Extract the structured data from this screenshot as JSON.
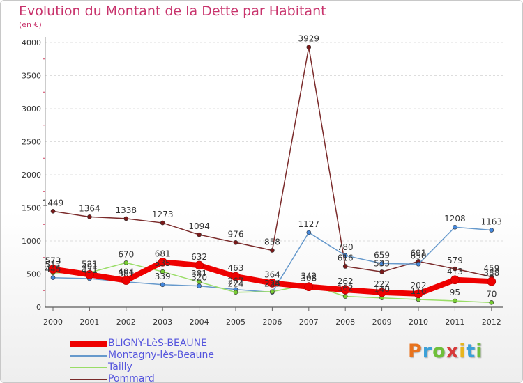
{
  "header": {
    "title": "Evolution du Montant de la Dette par Habitant",
    "unit": "(en €)"
  },
  "brand": {
    "text": "Proxiti",
    "colors": [
      "#e8731e",
      "#3ba0d8",
      "#6fbf3a",
      "#d83a3a",
      "#e8b51e",
      "#3ba0d8",
      "#6fbf3a"
    ]
  },
  "colors": {
    "title": "#c8336c",
    "legend_text": "#5555dd",
    "grid": "#dddddd"
  },
  "chart_data": {
    "type": "line",
    "title": "Evolution du Montant de la Dette par Habitant",
    "ylabel": "(en €)",
    "xlabel": "",
    "ylim": [
      0,
      4000
    ],
    "yticks": [
      0,
      500,
      1000,
      1500,
      2000,
      2500,
      3000,
      3500,
      4000
    ],
    "grid": "horizontal-dashed",
    "legend_position": "bottom-left",
    "x": [
      "2000",
      "2001",
      "2002",
      "2003",
      "2004",
      "2005",
      "2006",
      "2007",
      "2008",
      "2009",
      "2010",
      "2011",
      "2012"
    ],
    "series": [
      {
        "name": "BLIGNY-LèS-BEAUNE",
        "color": "#ee0000",
        "marker": "#ee0000",
        "width": 8,
        "values": [
          573,
          491,
          404,
          681,
          632,
          463,
          364,
          308,
          262,
          222,
          202,
          413,
          388
        ]
      },
      {
        "name": "Montagny-lès-Beaune",
        "color": "#6699cc",
        "marker": "#4488dd",
        "width": 1.5,
        "values": [
          445,
          431,
          381,
          339,
          320,
          267,
          225,
          1127,
          780,
          659,
          650,
          1208,
          1163
        ]
      },
      {
        "name": "Tailly",
        "color": "#99dd66",
        "marker": "#77cc33",
        "width": 1.5,
        "values": [
          517,
          521,
          670,
          535,
          381,
          224,
          234,
          342,
          162,
          140,
          116,
          95,
          70
        ]
      },
      {
        "name": "Pommard",
        "color": "#7a2a2a",
        "marker": "#7a1a1a",
        "width": 1.5,
        "values": [
          1449,
          1364,
          1338,
          1273,
          1094,
          976,
          858,
          3929,
          616,
          533,
          691,
          579,
          459
        ]
      }
    ]
  }
}
